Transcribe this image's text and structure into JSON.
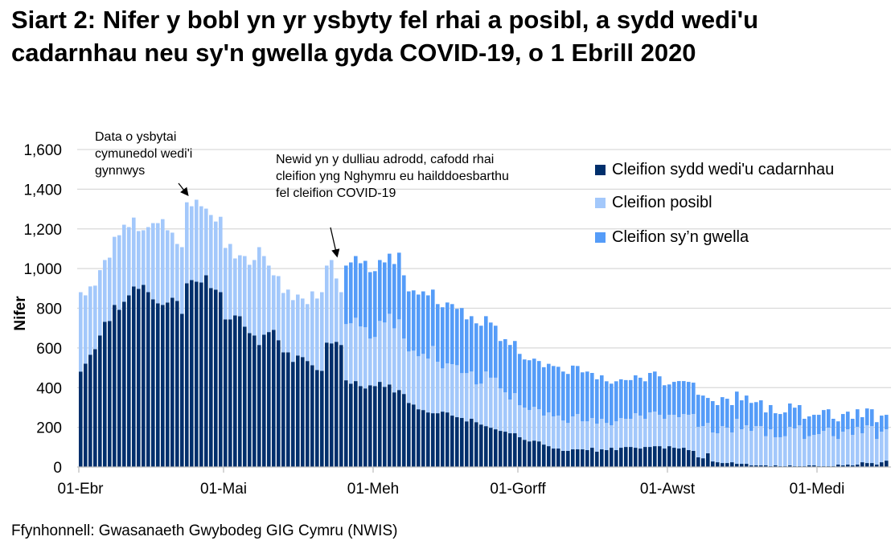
{
  "chart_data": {
    "type": "bar",
    "stacked": true,
    "title": "Siart 2: Nifer y bobl yn yr ysbyty fel rhai a posibl, a sydd wedi'u cadarnhau neu sy'n gwella gyda COVID-19, o 1 Ebrill 2020",
    "ylabel": "Nifer",
    "xlabel": "",
    "ylim": [
      0,
      1600
    ],
    "y_ticks": [
      "0",
      "200",
      "400",
      "600",
      "800",
      "1,000",
      "1,200",
      "1,400",
      "1,600"
    ],
    "grid": true,
    "legend_placement": "top-right",
    "date_range": [
      "2020-04-01",
      "2020-09-15"
    ],
    "x_ticks": [
      {
        "label": "01-Ebr",
        "date": "2020-04-01"
      },
      {
        "label": "01-Mai",
        "date": "2020-05-01"
      },
      {
        "label": "01-Meh",
        "date": "2020-06-01"
      },
      {
        "label": "01-Gorff",
        "date": "2020-07-01"
      },
      {
        "label": "01-Awst",
        "date": "2020-08-01"
      },
      {
        "label": "01-Medi",
        "date": "2020-09-01"
      }
    ],
    "series": [
      {
        "name": "Cleifion sydd wedi'u cadarnhau",
        "color": "#002f6c",
        "values": [
          481,
          521,
          566,
          594,
          663,
          732,
          736,
          817,
          792,
          833,
          865,
          910,
          898,
          918,
          881,
          845,
          825,
          817,
          829,
          853,
          837,
          772,
          926,
          942,
          934,
          930,
          966,
          902,
          894,
          881,
          744,
          744,
          764,
          760,
          707,
          675,
          663,
          615,
          667,
          680,
          691,
          639,
          578,
          578,
          530,
          562,
          554,
          534,
          513,
          489,
          485,
          627,
          623,
          631,
          615,
          437,
          420,
          433,
          408,
          396,
          412,
          408,
          429,
          404,
          416,
          376,
          388,
          368,
          323,
          315,
          291,
          287,
          275,
          271,
          271,
          279,
          275,
          259,
          251,
          247,
          230,
          243,
          226,
          214,
          206,
          198,
          190,
          182,
          178,
          170,
          170,
          150,
          137,
          129,
          133,
          129,
          113,
          105,
          93,
          93,
          81,
          81,
          89,
          89,
          89,
          85,
          97,
          77,
          89,
          85,
          97,
          85,
          97,
          101,
          101,
          97,
          93,
          101,
          101,
          105,
          105,
          93,
          105,
          97,
          93,
          97,
          85,
          81,
          49,
          44,
          69,
          28,
          24,
          20,
          20,
          24,
          16,
          16,
          16,
          8,
          8,
          8,
          8,
          4,
          8,
          4,
          4,
          8,
          4,
          4,
          4,
          8,
          8,
          4,
          4,
          4,
          4,
          12,
          8,
          12,
          8,
          12,
          24,
          20,
          20,
          12,
          24,
          32
        ]
      },
      {
        "name": "Cleifion posibl",
        "color": "#a3c8fb",
        "values": [
          400,
          344,
          344,
          320,
          329,
          311,
          319,
          343,
          376,
          388,
          344,
          347,
          291,
          275,
          328,
          384,
          404,
          432,
          364,
          328,
          287,
          336,
          408,
          372,
          413,
          384,
          336,
          368,
          343,
          380,
          360,
          380,
          287,
          307,
          356,
          344,
          380,
          493,
          396,
          335,
          275,
          323,
          299,
          316,
          311,
          307,
          295,
          287,
          372,
          360,
          396,
          388,
          420,
          319,
          266,
          283,
          304,
          319,
          300,
          308,
          235,
          247,
          307,
          324,
          356,
          323,
          356,
          279,
          259,
          271,
          267,
          283,
          271,
          339,
          259,
          218,
          247,
          259,
          262,
          226,
          243,
          238,
          190,
          206,
          275,
          252,
          260,
          214,
          198,
          170,
          202,
          161,
          162,
          158,
          170,
          162,
          146,
          170,
          162,
          166,
          153,
          141,
          166,
          178,
          141,
          145,
          150,
          141,
          154,
          137,
          113,
          145,
          150,
          142,
          142,
          174,
          166,
          142,
          174,
          174,
          158,
          150,
          158,
          166,
          158,
          170,
          178,
          186,
          153,
          162,
          153,
          146,
          146,
          186,
          178,
          150,
          227,
          174,
          194,
          174,
          198,
          198,
          147,
          186,
          142,
          146,
          151,
          194,
          190,
          206,
          137,
          147,
          154,
          162,
          178,
          194,
          151,
          129,
          170,
          178,
          154,
          190,
          146,
          190,
          186,
          129,
          154,
          158
        ]
      },
      {
        "name": "Cleifion sy’n gwella",
        "color": "#559cf8",
        "values": [
          0,
          0,
          0,
          0,
          0,
          0,
          0,
          0,
          0,
          0,
          0,
          0,
          0,
          0,
          0,
          0,
          0,
          0,
          0,
          0,
          0,
          0,
          0,
          0,
          0,
          0,
          0,
          0,
          0,
          0,
          0,
          0,
          0,
          0,
          0,
          0,
          0,
          0,
          0,
          0,
          0,
          0,
          0,
          0,
          0,
          0,
          0,
          0,
          0,
          0,
          0,
          0,
          0,
          0,
          0,
          295,
          307,
          311,
          319,
          335,
          335,
          332,
          307,
          303,
          303,
          324,
          336,
          319,
          303,
          304,
          311,
          315,
          319,
          284,
          291,
          308,
          307,
          303,
          284,
          328,
          271,
          279,
          308,
          292,
          279,
          278,
          262,
          239,
          268,
          275,
          263,
          259,
          243,
          251,
          243,
          243,
          244,
          245,
          254,
          246,
          247,
          247,
          256,
          242,
          247,
          251,
          227,
          224,
          219,
          210,
          210,
          202,
          195,
          195,
          195,
          191,
          191,
          189,
          199,
          202,
          194,
          169,
          153,
          166,
          182,
          166,
          166,
          158,
          162,
          154,
          126,
          158,
          142,
          146,
          146,
          138,
          137,
          146,
          150,
          141,
          121,
          130,
          120,
          122,
          121,
          117,
          120,
          118,
          105,
          102,
          102,
          100,
          101,
          97,
          105,
          93,
          88,
          89,
          89,
          89,
          81,
          89,
          81,
          85,
          85,
          85,
          81,
          73
        ]
      }
    ],
    "annotations": [
      {
        "lines": [
          "Data o ysbytai",
          "cymunedol wedi'i",
          "gynnwys"
        ],
        "date": "2020-04-23"
      },
      {
        "lines": [
          "Newid yn y dulliau adrodd, cafodd rhai",
          "cleifion yng Nghymru eu hailddoesbarthu",
          "fel cleifion COVID-19"
        ],
        "date": "2020-05-26"
      }
    ]
  },
  "source": "Ffynhonnell: Gwasanaeth Gwybodeg GIG Cymru (NWIS)"
}
